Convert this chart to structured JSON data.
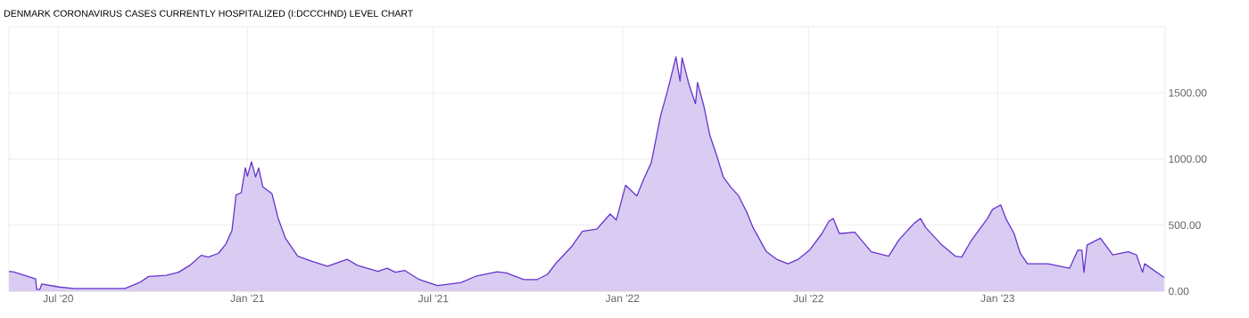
{
  "chart_data": {
    "type": "area",
    "title": "DENMARK CORONAVIRUS CASES CURRENTLY HOSPITALIZED (I:DCCCHND) LEVEL CHART",
    "xlim": [
      "2020-05-14",
      "2023-06-13"
    ],
    "ylim": [
      0,
      2000
    ],
    "xticks": [
      {
        "value": "2020-07-01",
        "label": "Jul '20"
      },
      {
        "value": "2021-01-01",
        "label": "Jan '21"
      },
      {
        "value": "2021-07-01",
        "label": "Jul '21"
      },
      {
        "value": "2022-01-01",
        "label": "Jan '22"
      },
      {
        "value": "2022-07-01",
        "label": "Jul '22"
      },
      {
        "value": "2023-01-01",
        "label": "Jan '23"
      }
    ],
    "yticks": [
      {
        "value": 0,
        "label": "0.00"
      },
      {
        "value": 500,
        "label": "500.00"
      },
      {
        "value": 1000,
        "label": "1000.00"
      },
      {
        "value": 1500,
        "label": "1500.00"
      }
    ],
    "grid": true,
    "x": [
      "2020-05-14",
      "2020-05-19",
      "2020-06-09",
      "2020-06-10",
      "2020-06-13",
      "2020-06-15",
      "2020-07-02",
      "2020-07-16",
      "2020-08-14",
      "2020-09-04",
      "2020-09-18",
      "2020-09-27",
      "2020-10-14",
      "2020-10-26",
      "2020-11-06",
      "2020-11-17",
      "2020-11-24",
      "2020-12-04",
      "2020-12-11",
      "2020-12-17",
      "2020-12-21",
      "2020-12-26",
      "2020-12-30",
      "2021-01-01",
      "2021-01-05",
      "2021-01-09",
      "2021-01-12",
      "2021-01-16",
      "2021-01-25",
      "2021-01-31",
      "2021-02-07",
      "2021-02-19",
      "2021-03-05",
      "2021-03-20",
      "2021-04-08",
      "2021-04-18",
      "2021-05-08",
      "2021-05-17",
      "2021-05-25",
      "2021-06-03",
      "2021-06-16",
      "2021-06-20",
      "2021-07-05",
      "2021-07-28",
      "2021-08-12",
      "2021-09-01",
      "2021-09-10",
      "2021-09-27",
      "2021-10-10",
      "2021-10-20",
      "2021-10-29",
      "2021-11-12",
      "2021-11-23",
      "2021-12-07",
      "2021-12-20",
      "2021-12-26",
      "2022-01-04",
      "2022-01-15",
      "2022-01-21",
      "2022-01-29",
      "2022-02-07",
      "2022-02-14",
      "2022-02-22",
      "2022-02-26",
      "2022-02-28",
      "2022-03-07",
      "2022-03-13",
      "2022-03-15",
      "2022-03-21",
      "2022-03-27",
      "2022-04-03",
      "2022-04-09",
      "2022-04-16",
      "2022-04-24",
      "2022-05-02",
      "2022-05-08",
      "2022-05-21",
      "2022-05-31",
      "2022-06-11",
      "2022-06-21",
      "2022-07-02",
      "2022-07-14",
      "2022-07-21",
      "2022-07-25",
      "2022-07-31",
      "2022-08-15",
      "2022-08-31",
      "2022-09-17",
      "2022-09-27",
      "2022-10-12",
      "2022-10-18",
      "2022-10-23",
      "2022-11-07",
      "2022-11-21",
      "2022-11-27",
      "2022-12-06",
      "2022-12-22",
      "2022-12-27",
      "2023-01-04",
      "2023-01-09",
      "2023-01-17",
      "2023-01-23",
      "2023-01-30",
      "2023-02-19",
      "2023-03-12",
      "2023-03-20",
      "2023-03-24",
      "2023-03-26",
      "2023-03-29",
      "2023-04-11",
      "2023-04-23",
      "2023-05-08",
      "2023-05-16",
      "2023-05-22",
      "2023-05-24",
      "2023-06-12"
    ],
    "series": [
      {
        "color": "#6633cc",
        "values": [
          151,
          146,
          94,
          14,
          14,
          55,
          32,
          21,
          21,
          21,
          66,
          112,
          121,
          144,
          196,
          272,
          258,
          288,
          356,
          459,
          728,
          744,
          934,
          870,
          979,
          865,
          932,
          790,
          737,
          550,
          402,
          265,
          226,
          189,
          242,
          196,
          151,
          174,
          144,
          158,
          94,
          82,
          43,
          66,
          116,
          148,
          139,
          89,
          89,
          128,
          219,
          333,
          454,
          470,
          584,
          539,
          801,
          721,
          836,
          973,
          1326,
          1521,
          1772,
          1589,
          1765,
          1555,
          1418,
          1578,
          1406,
          1178,
          1018,
          865,
          790,
          721,
          596,
          482,
          299,
          242,
          208,
          242,
          311,
          436,
          532,
          550,
          436,
          447,
          299,
          265,
          390,
          516,
          550,
          482,
          356,
          265,
          258,
          379,
          550,
          619,
          653,
          550,
          436,
          288,
          208,
          208,
          174,
          311,
          311,
          144,
          349,
          402,
          276,
          299,
          276,
          144,
          208,
          105
        ]
      }
    ]
  }
}
